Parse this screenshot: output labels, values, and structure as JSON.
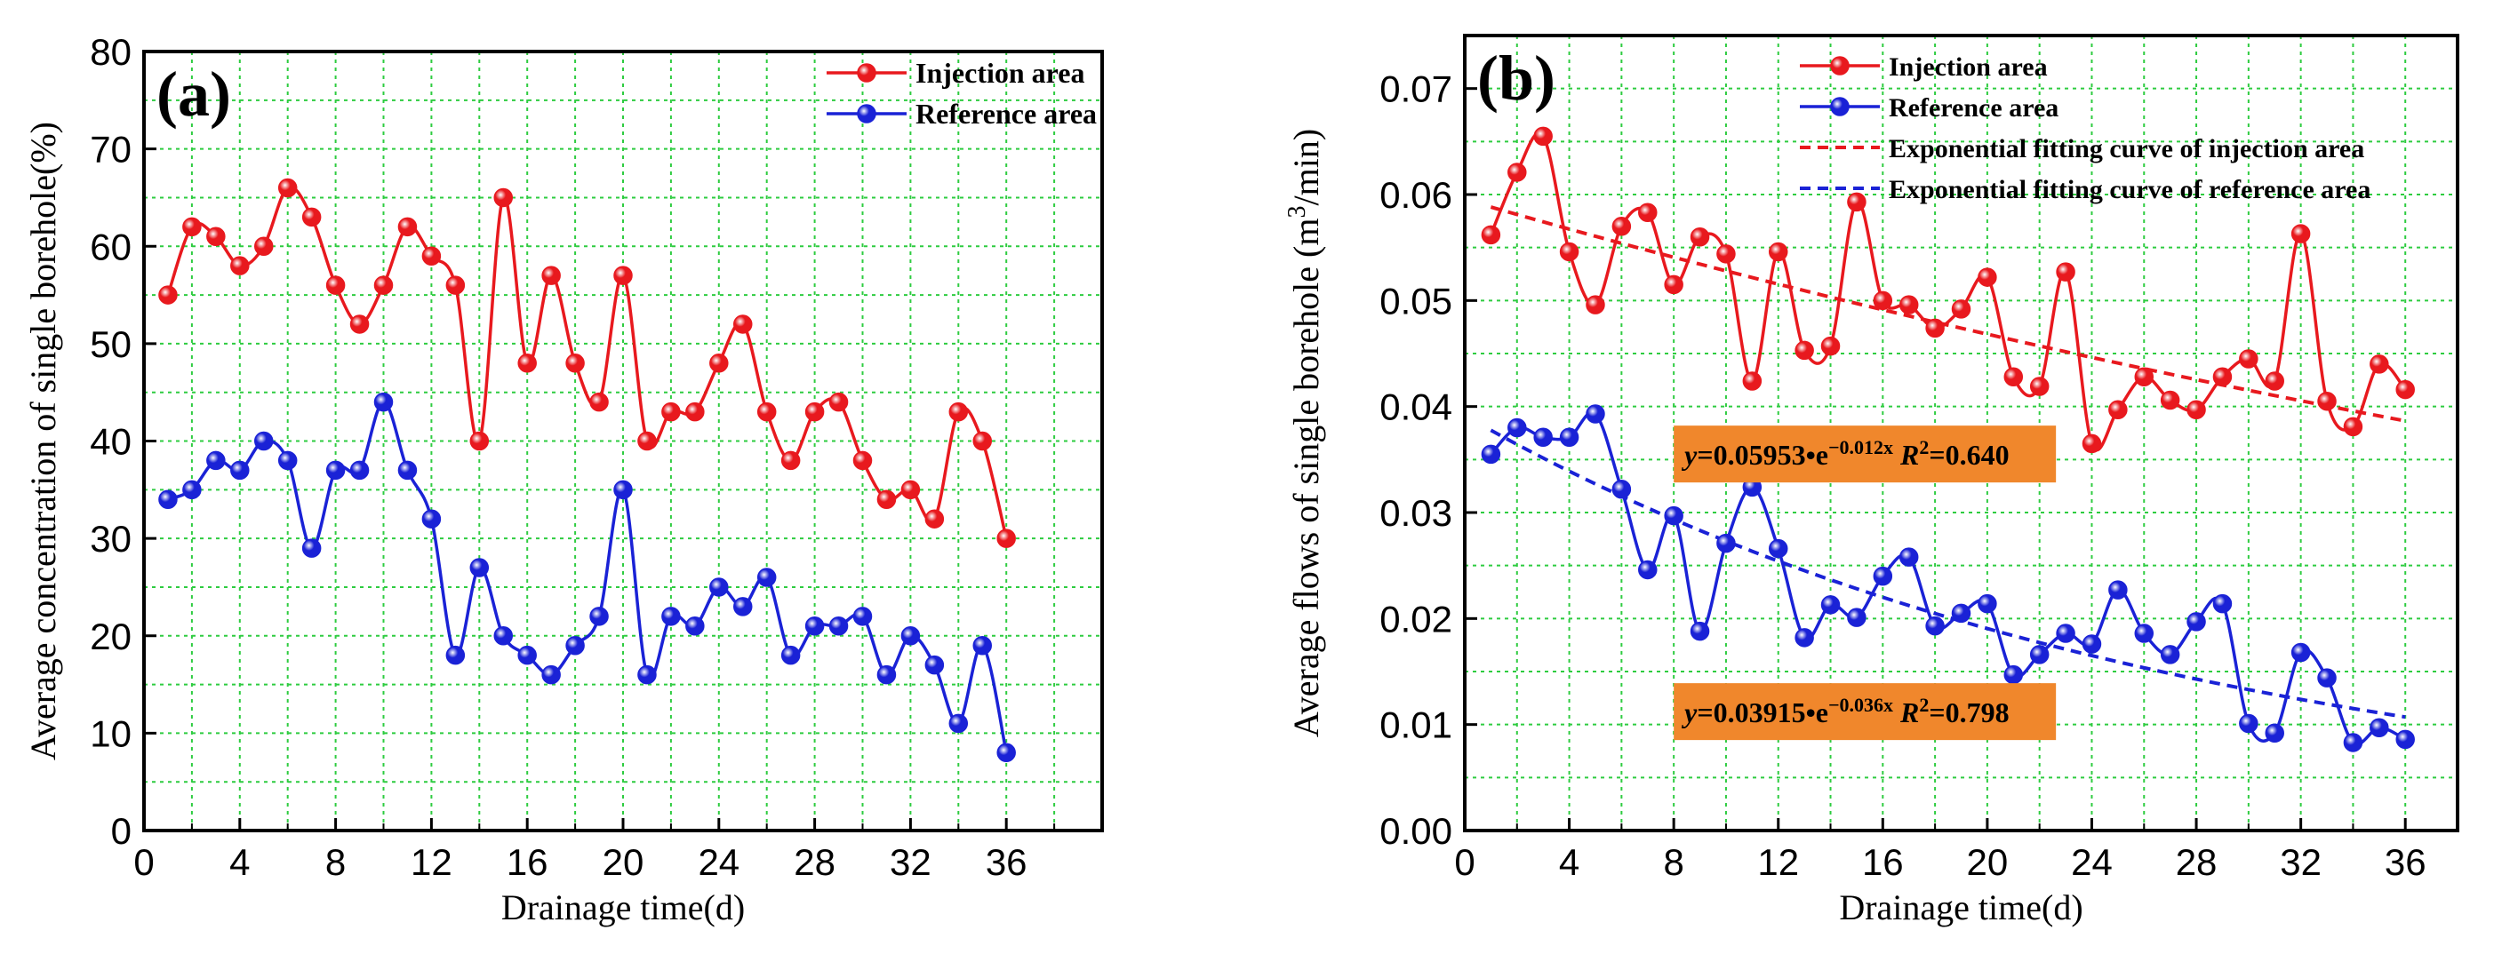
{
  "chart_data": [
    {
      "type": "line",
      "panel_label": "(a)",
      "xlabel": "Drainage time(d)",
      "ylabel": "Average concentration of single borehole(%)",
      "xlim": [
        0,
        40
      ],
      "ylim": [
        0,
        80
      ],
      "xticks": [
        0,
        4,
        8,
        12,
        16,
        20,
        24,
        28,
        32,
        36
      ],
      "yticks": [
        0,
        10,
        20,
        30,
        40,
        50,
        60,
        70,
        80
      ],
      "grid": true,
      "legend_position": "top-right",
      "series": [
        {
          "name": "Injection   area",
          "color": "#e8191e",
          "x": [
            1,
            2,
            3,
            4,
            5,
            6,
            7,
            8,
            9,
            10,
            11,
            12,
            13,
            14,
            15,
            16,
            17,
            18,
            19,
            20,
            21,
            22,
            23,
            24,
            25,
            26,
            27,
            28,
            29,
            30,
            31,
            32,
            33,
            34,
            35,
            36
          ],
          "y": [
            55,
            62,
            61,
            58,
            60,
            66,
            63,
            56,
            52,
            56,
            62,
            59,
            56,
            40,
            65,
            48,
            57,
            48,
            44,
            57,
            40,
            43,
            43,
            48,
            52,
            43,
            38,
            43,
            44,
            38,
            34,
            35,
            32,
            43,
            40,
            30
          ]
        },
        {
          "name": "Reference area",
          "color": "#1a22d6",
          "x": [
            1,
            2,
            3,
            4,
            5,
            6,
            7,
            8,
            9,
            10,
            11,
            12,
            13,
            14,
            15,
            16,
            17,
            18,
            19,
            20,
            21,
            22,
            23,
            24,
            25,
            26,
            27,
            28,
            29,
            30,
            31,
            32,
            33,
            34,
            35,
            36
          ],
          "y": [
            34,
            35,
            38,
            37,
            40,
            38,
            29,
            37,
            37,
            44,
            37,
            32,
            18,
            27,
            20,
            18,
            16,
            19,
            22,
            35,
            16,
            22,
            21,
            25,
            23,
            26,
            18,
            21,
            21,
            22,
            16,
            20,
            17,
            11,
            19,
            8
          ]
        }
      ]
    },
    {
      "type": "line",
      "panel_label": "(b)",
      "xlabel": "Drainage time(d)",
      "ylabel_prefix": "Average flows of single borehole (m",
      "ylabel_sup": "3",
      "ylabel_suffix": "/min)",
      "xlim": [
        0,
        38
      ],
      "ylim": [
        0,
        0.075
      ],
      "xticks": [
        0,
        4,
        8,
        12,
        16,
        20,
        24,
        28,
        32,
        36
      ],
      "yticks": [
        0.0,
        0.01,
        0.02,
        0.03,
        0.04,
        0.05,
        0.06,
        0.07
      ],
      "ytick_labels": [
        "0.00",
        "0.01",
        "0.02",
        "0.03",
        "0.04",
        "0.05",
        "0.06",
        "0.07"
      ],
      "grid": true,
      "legend_position": "top-right",
      "series": [
        {
          "name": "Injection area",
          "color": "#e8191e",
          "x": [
            1,
            2,
            3,
            4,
            5,
            6,
            7,
            8,
            9,
            10,
            11,
            12,
            13,
            14,
            15,
            16,
            17,
            18,
            19,
            20,
            21,
            22,
            23,
            24,
            25,
            26,
            27,
            28,
            29,
            30,
            31,
            32,
            33,
            34,
            35,
            36
          ],
          "y": [
            0.0562,
            0.0621,
            0.0655,
            0.0546,
            0.0496,
            0.057,
            0.0583,
            0.0515,
            0.056,
            0.0544,
            0.0424,
            0.0546,
            0.0453,
            0.0457,
            0.0593,
            0.05,
            0.0496,
            0.0474,
            0.0492,
            0.0522,
            0.0428,
            0.0419,
            0.0527,
            0.0365,
            0.0397,
            0.0428,
            0.0406,
            0.0397,
            0.0428,
            0.0445,
            0.0424,
            0.0563,
            0.0405,
            0.0381,
            0.044,
            0.0416
          ]
        },
        {
          "name": "Reference area",
          "color": "#1a22d6",
          "x": [
            1,
            2,
            3,
            4,
            5,
            6,
            7,
            8,
            9,
            10,
            11,
            12,
            13,
            14,
            15,
            16,
            17,
            18,
            19,
            20,
            21,
            22,
            23,
            24,
            25,
            26,
            27,
            28,
            29,
            30,
            31,
            32,
            33,
            34,
            35,
            36
          ],
          "y": [
            0.0355,
            0.038,
            0.0371,
            0.0371,
            0.0393,
            0.0322,
            0.0246,
            0.0297,
            0.0188,
            0.0271,
            0.0324,
            0.0266,
            0.0182,
            0.0213,
            0.0201,
            0.024,
            0.0258,
            0.0193,
            0.0205,
            0.0214,
            0.0147,
            0.0166,
            0.0186,
            0.0176,
            0.0227,
            0.0186,
            0.0166,
            0.0197,
            0.0214,
            0.0101,
            0.0092,
            0.0168,
            0.0144,
            0.0083,
            0.0097,
            0.0086
          ]
        },
        {
          "name": "Exponential fitting curve of injection area",
          "color": "#e8191e",
          "dashed": true,
          "fit": {
            "a": 0.05953,
            "b": -0.012
          },
          "x_range": [
            1,
            36
          ]
        },
        {
          "name": "Exponential fitting curve of reference area",
          "color": "#1a22d6",
          "dashed": true,
          "fit": {
            "a": 0.03915,
            "b": -0.036
          },
          "x_range": [
            1,
            36
          ]
        }
      ],
      "annotations": [
        {
          "name": "injection-fit-equation",
          "eq_prefix": "y",
          "eq_body": "=0.05953•e",
          "eq_exp": "−0.012x",
          "r2_label": "R",
          "r2_exp": "2",
          "r2_value": "=0.640",
          "box_color": "#f0872c",
          "anchor_data": {
            "x": 8,
            "y": 0.0382
          }
        },
        {
          "name": "reference-fit-equation",
          "eq_prefix": "y",
          "eq_body": "=0.03915•e",
          "eq_exp": "−0.036x",
          "r2_label": "R",
          "r2_exp": "2",
          "r2_value": "=0.798",
          "box_color": "#f0872c",
          "anchor_data": {
            "x": 8,
            "y": 0.0139
          }
        }
      ]
    }
  ]
}
